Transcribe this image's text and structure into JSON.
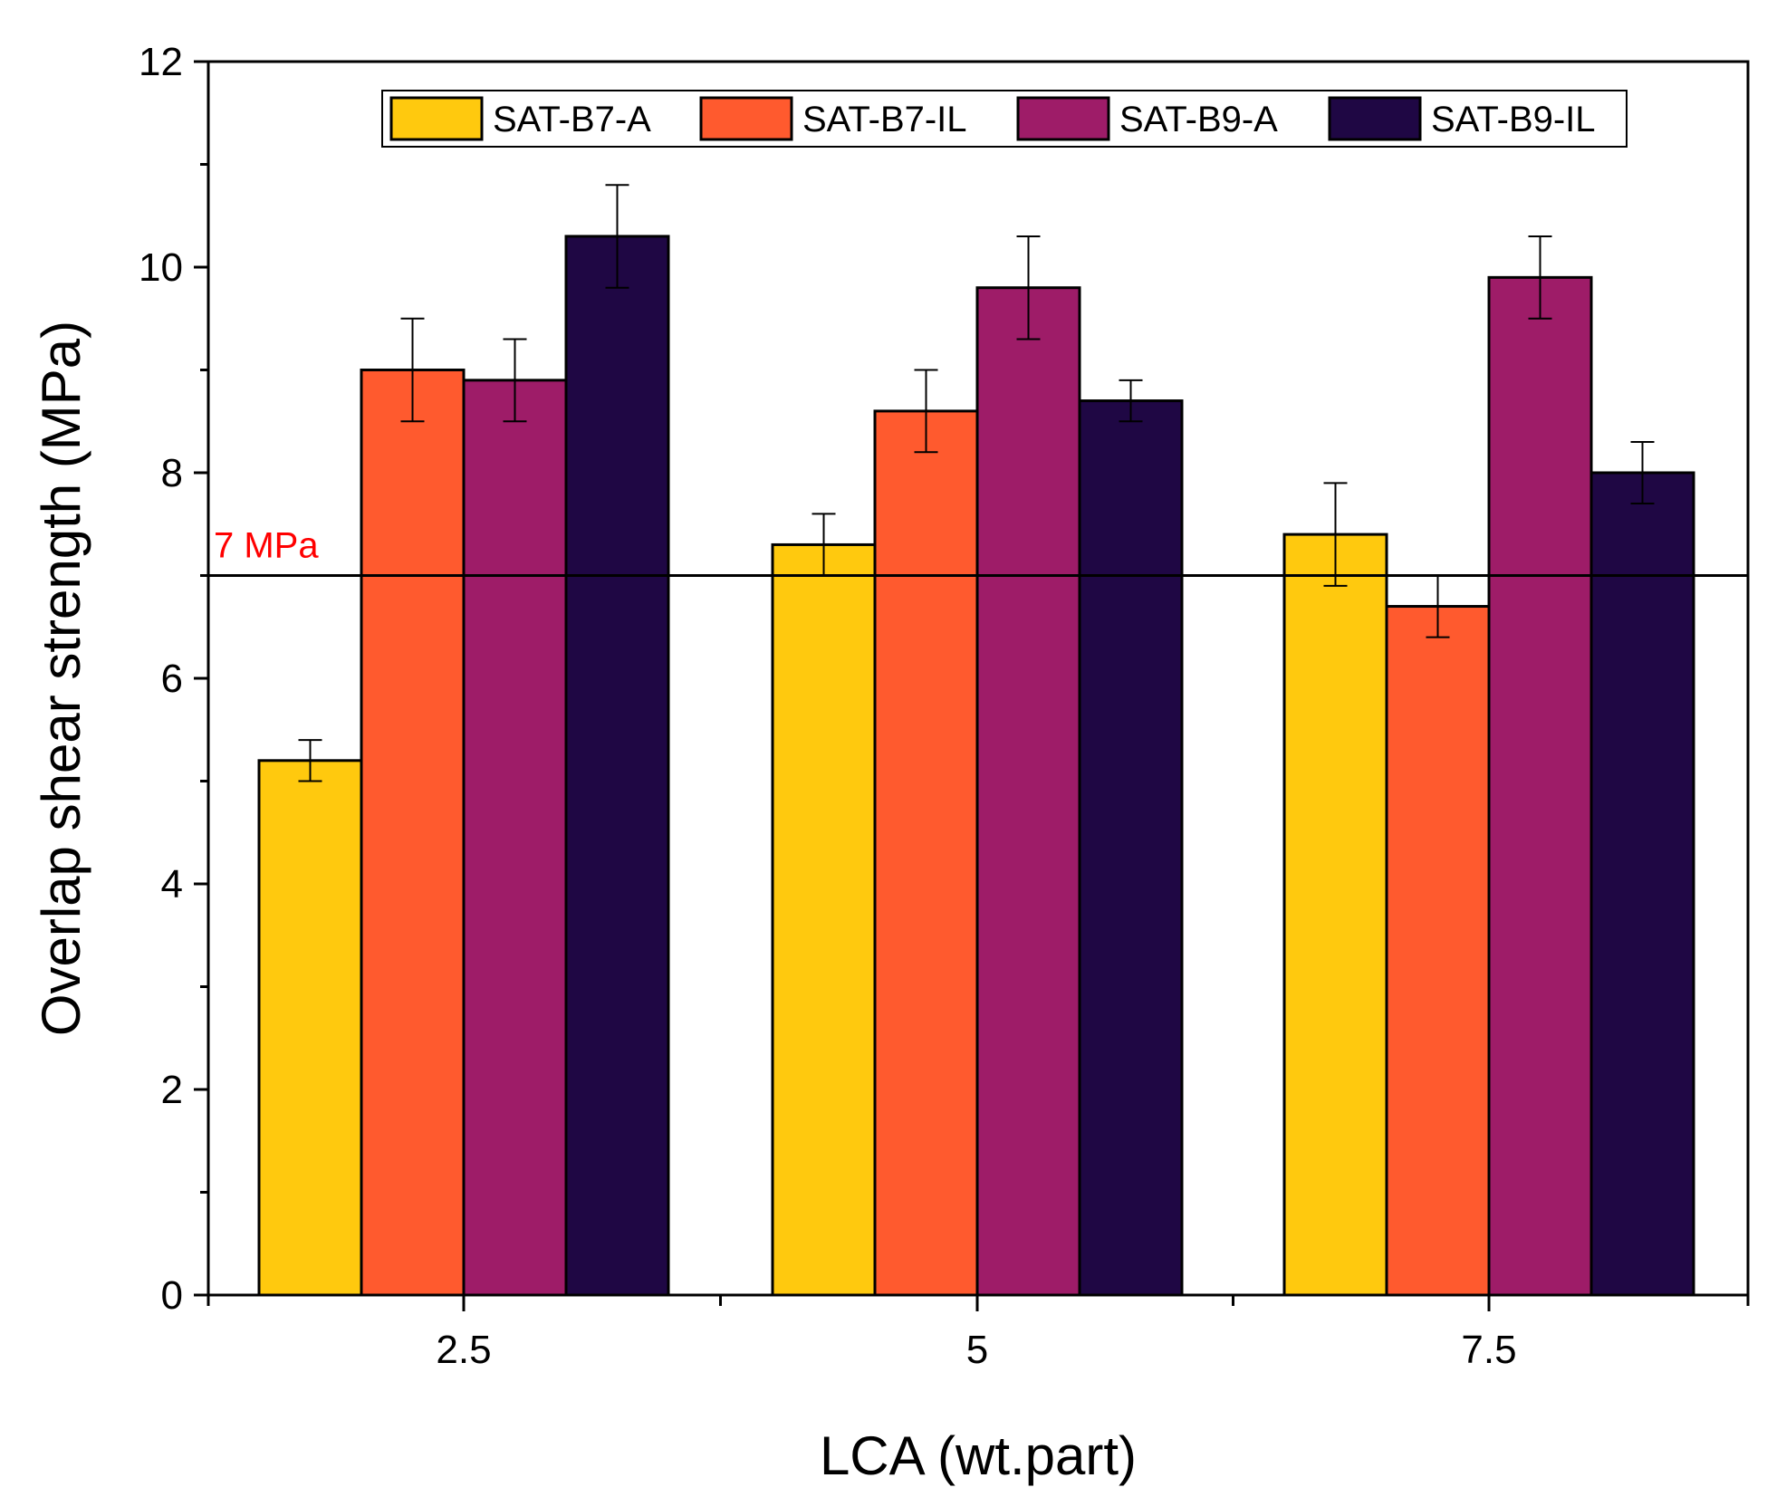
{
  "chart_data": {
    "type": "bar",
    "title": "",
    "xlabel": "LCA (wt.part)",
    "ylabel": "Overlap shear strength (MPa)",
    "ylim": [
      0,
      12
    ],
    "yticks": [
      0,
      2,
      4,
      6,
      8,
      10,
      12
    ],
    "categories": [
      "2.5",
      "5",
      "7.5"
    ],
    "series": [
      {
        "name": "SAT-B7-A",
        "color": "#FFC90E",
        "values": [
          5.2,
          7.3,
          7.4
        ],
        "errors": [
          0.2,
          0.3,
          0.5
        ]
      },
      {
        "name": "SAT-B7-IL",
        "color": "#FF5A2E",
        "values": [
          9.0,
          8.6,
          6.7
        ],
        "errors": [
          0.5,
          0.4,
          0.3
        ]
      },
      {
        "name": "SAT-B9-A",
        "color": "#9E1C68",
        "values": [
          8.9,
          9.8,
          9.9
        ],
        "errors": [
          0.4,
          0.5,
          0.4
        ]
      },
      {
        "name": "SAT-B9-IL",
        "color": "#1F0744",
        "values": [
          10.3,
          8.7,
          8.0
        ],
        "errors": [
          0.5,
          0.2,
          0.3
        ]
      }
    ],
    "reference_line": {
      "value": 7,
      "label": "7 MPa",
      "label_color": "#FF0000"
    },
    "legend": {
      "position": "top",
      "columns": 4
    },
    "grid": false
  }
}
